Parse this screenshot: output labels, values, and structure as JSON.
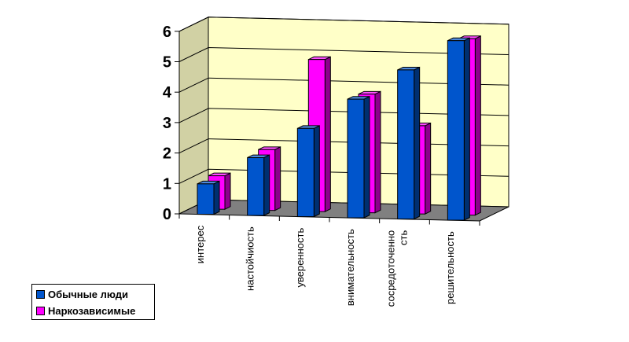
{
  "chart_data": {
    "type": "bar",
    "categories": [
      "интерес",
      "настойчиость",
      "уверенность",
      "внимательность",
      "сосредоточенно сть",
      "решительность"
    ],
    "category_lines": [
      [
        "интерес"
      ],
      [
        "настойчиость"
      ],
      [
        "уверенность"
      ],
      [
        "внимательность"
      ],
      [
        "сосредоточенно",
        "сть"
      ],
      [
        "решительность"
      ]
    ],
    "series": [
      {
        "name": "Обычные люди",
        "values": [
          1,
          1.9,
          2.9,
          3.9,
          4.9,
          5.9
        ],
        "color": "#0055cc"
      },
      {
        "name": "Наркозависимые",
        "values": [
          1.1,
          2.0,
          5.0,
          3.9,
          2.9,
          5.8
        ],
        "color": "#ff00ff"
      }
    ],
    "ylim": [
      0,
      6
    ],
    "yticks": [
      "0",
      "1",
      "2",
      "3",
      "4",
      "5",
      "6"
    ],
    "grid": true,
    "wall_color": "#ffffc8",
    "floor_color": "#808080",
    "legend_position": "bottom-left",
    "style": "3d-clustered-bar"
  }
}
